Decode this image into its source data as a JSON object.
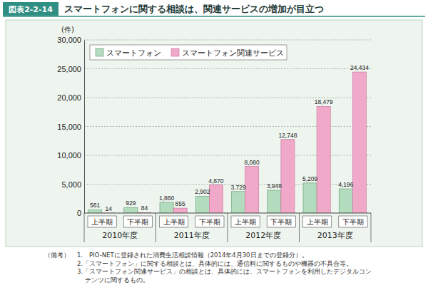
{
  "chart_data": {
    "type": "bar",
    "header": "図表2-2-14",
    "title": "スマートフォンに関する相談は、関連サービスの増加が目立つ",
    "y_label": "(件)",
    "categories": [
      "上半期",
      "下半期",
      "上半期",
      "下半期",
      "上半期",
      "下半期",
      "上半期",
      "下半期"
    ],
    "group_labels": [
      "2010年度",
      "2011年度",
      "2012年度",
      "2013年度"
    ],
    "series": [
      {
        "name": "スマートフォン",
        "color": "#b3dbbd",
        "values": [
          561,
          929,
          1860,
          2902,
          3729,
          3948,
          5209,
          4196
        ],
        "value_labels": [
          "561",
          "929",
          "1,860",
          "2,902",
          "3,729",
          "3,948",
          "5,209",
          "4,196"
        ]
      },
      {
        "name": "スマートフォン関連サービス",
        "color": "#f0a9c9",
        "values": [
          14,
          84,
          855,
          4870,
          8080,
          12748,
          18479,
          24434
        ],
        "value_labels": [
          "14",
          "84",
          "855",
          "4,870",
          "8,080",
          "12,748",
          "18,479",
          "24,434"
        ]
      }
    ],
    "ylim": [
      0,
      30000
    ],
    "yticks": [
      0,
      {
        "value": 5000,
        "label": "5,000"
      },
      {
        "value": 10000,
        "label": "10,000"
      },
      {
        "value": 15000,
        "label": "15,000"
      },
      {
        "value": 20000,
        "label": "20,000"
      },
      {
        "value": 25000,
        "label": "25,000"
      },
      {
        "value": 30000,
        "label": "30,000"
      }
    ],
    "grid": true,
    "legend": "upper left",
    "data_labels": true,
    "notes_title": "（備考）",
    "notes": [
      [
        "1.　PIO-NETに登録された消費生活相談情報（2014年4月30日までの登録分）。"
      ],
      [
        "2.「スマートフォン」に関する相談とは、具体的には、通信料に関するものや機器の不具合等。"
      ],
      [
        "3.「スマートフォン関連サービス」の相談とは、具体的には、スマートフォンを利用したデジタルコン",
        "テンツに関するもの。"
      ]
    ]
  }
}
